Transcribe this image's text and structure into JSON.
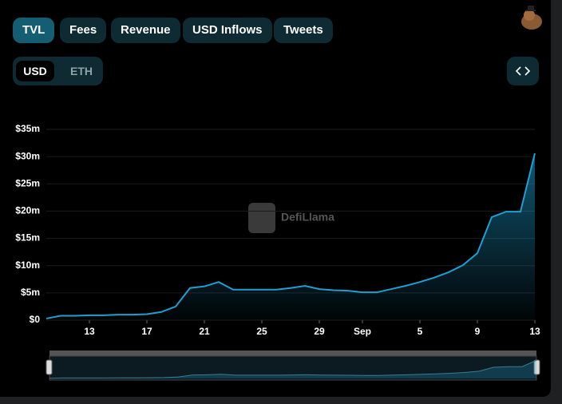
{
  "tabs": [
    "TVL",
    "Fees",
    "Revenue",
    "USD Inflows",
    "Tweets"
  ],
  "active_tab": "TVL",
  "currency": [
    "USD",
    "ETH"
  ],
  "active_currency": "USD",
  "watermark": "DefiLlama",
  "chart_data": {
    "type": "area",
    "color": "#1e9fd0",
    "categories": [
      null,
      null,
      null,
      "13",
      null,
      null,
      null,
      "17",
      null,
      null,
      null,
      "21",
      null,
      null,
      null,
      "25",
      null,
      null,
      null,
      "29",
      null,
      null,
      "Sep",
      null,
      null,
      null,
      "5",
      null,
      null,
      null,
      "9",
      null,
      null,
      null,
      "13"
    ],
    "values": [
      0.3,
      0.8,
      0.8,
      0.9,
      0.9,
      1.0,
      1.0,
      1.1,
      1.5,
      2.5,
      5.9,
      6.2,
      7.0,
      5.6,
      5.6,
      5.6,
      5.6,
      5.9,
      6.3,
      5.7,
      5.5,
      5.4,
      5.1,
      5.1,
      5.7,
      6.3,
      7.0,
      7.8,
      8.8,
      10.1,
      12.3,
      18.9,
      19.9,
      19.9,
      30.6
    ],
    "ylim": [
      0,
      35
    ],
    "yticks": [
      {
        "value": 0,
        "label": "$0"
      },
      {
        "value": 5,
        "label": "$5m"
      },
      {
        "value": 10,
        "label": "$10m"
      },
      {
        "value": 15,
        "label": "$15m"
      },
      {
        "value": 20,
        "label": "$20m"
      },
      {
        "value": 25,
        "label": "$25m"
      },
      {
        "value": 30,
        "label": "$30m"
      },
      {
        "value": 35,
        "label": "$35m"
      }
    ],
    "grid": true
  }
}
